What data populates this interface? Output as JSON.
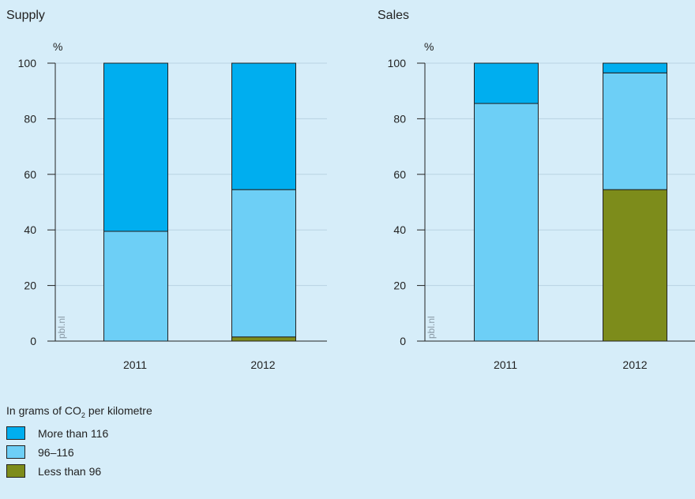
{
  "legend": {
    "title_prefix": "In grams of CO",
    "title_sub": "2",
    "title_suffix": " per kilometre",
    "items": [
      {
        "label": "More than 116",
        "color": "#00aeef"
      },
      {
        "label": "96–116",
        "color": "#6dcff6"
      },
      {
        "label": "Less than 96",
        "color": "#7d8c1b"
      }
    ]
  },
  "watermark": "pbl.nl",
  "chart_data": [
    {
      "type": "bar",
      "stacked": true,
      "title": "Supply",
      "ylabel": "%",
      "categories": [
        "2011",
        "2012"
      ],
      "ylim": [
        0,
        100
      ],
      "yticks": [
        0,
        20,
        40,
        60,
        80,
        100
      ],
      "series": [
        {
          "name": "Less than 96",
          "values": [
            0,
            1.5
          ]
        },
        {
          "name": "96–116",
          "values": [
            39.5,
            53
          ]
        },
        {
          "name": "More than 116",
          "values": [
            60.5,
            45.5
          ]
        }
      ]
    },
    {
      "type": "bar",
      "stacked": true,
      "title": "Sales",
      "ylabel": "%",
      "categories": [
        "2011",
        "2012"
      ],
      "ylim": [
        0,
        100
      ],
      "yticks": [
        0,
        20,
        40,
        60,
        80,
        100
      ],
      "series": [
        {
          "name": "Less than 96",
          "values": [
            0,
            54.5
          ]
        },
        {
          "name": "96–116",
          "values": [
            85.5,
            42
          ]
        },
        {
          "name": "More than 116",
          "values": [
            14.5,
            3.5
          ]
        }
      ]
    }
  ]
}
